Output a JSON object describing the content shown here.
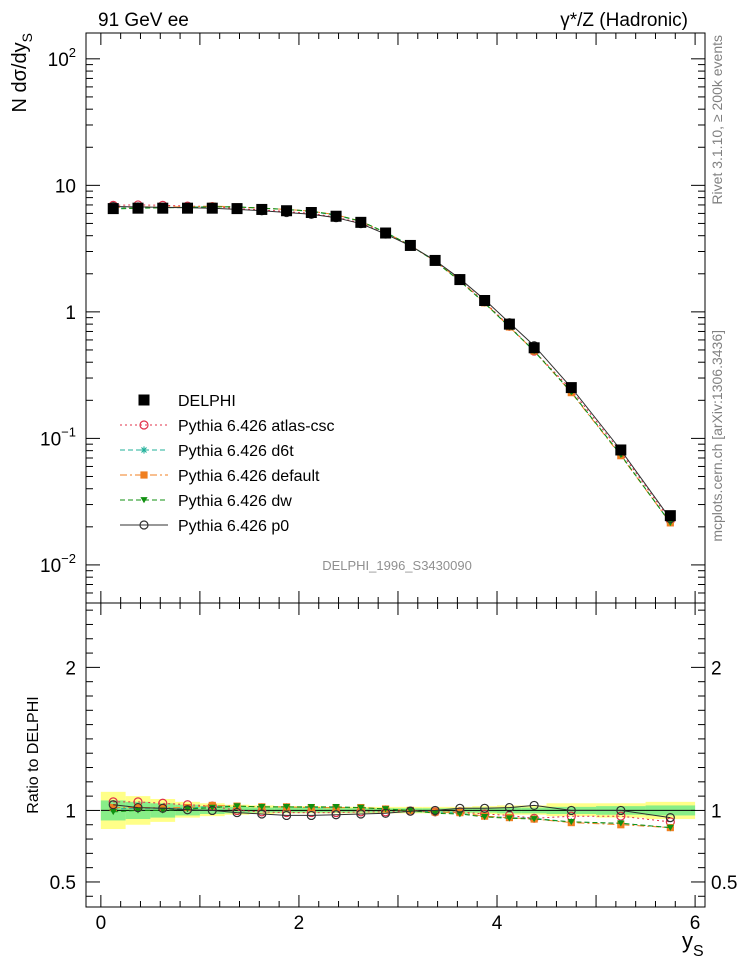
{
  "header": {
    "left_title": "91 GeV ee",
    "right_title": "γ*/Z (Hadronic)"
  },
  "side_labels": {
    "version": "Rivet 3.1.10, ≥ 200k events",
    "source": "mcplots.cern.ch [arXiv:1306.3436]"
  },
  "watermark": "DELPHI_1996_S3430090",
  "colors": {
    "delphi": "#000000",
    "atlas_csc": "#e0304a",
    "d6t": "#20b09a",
    "default": "#f07f20",
    "dw": "#109010",
    "p0": "#303030",
    "band_yellow": "#ffff88",
    "band_green": "#88ee88"
  },
  "chart_data": [
    {
      "type": "scatter",
      "title": "",
      "xlabel": "",
      "ylabel": "N dσ/dy_S",
      "ylog": true,
      "xlim": [
        -0.15,
        6.1
      ],
      "ylim": [
        0.005,
        160
      ],
      "y_ticks": [
        {
          "v": 0.01,
          "base": "10",
          "exp": "−2"
        },
        {
          "v": 0.1,
          "base": "10",
          "exp": "−1"
        },
        {
          "v": 1,
          "base": "1",
          "exp": ""
        },
        {
          "v": 10,
          "base": "10",
          "exp": ""
        },
        {
          "v": 100,
          "base": "10",
          "exp": "2"
        }
      ],
      "x": [
        0.125,
        0.375,
        0.625,
        0.875,
        1.125,
        1.375,
        1.625,
        1.875,
        2.125,
        2.375,
        2.625,
        2.875,
        3.125,
        3.375,
        3.625,
        3.875,
        4.125,
        4.375,
        4.75,
        5.25,
        5.75
      ],
      "legend_position": "lower-left",
      "series": [
        {
          "name": "DELPHI",
          "key": "delphi",
          "marker": "filled-square",
          "line": "none",
          "values": [
            6.55,
            6.6,
            6.6,
            6.6,
            6.6,
            6.55,
            6.45,
            6.3,
            6.1,
            5.7,
            5.1,
            4.2,
            3.35,
            2.55,
            1.8,
            1.23,
            0.8,
            0.52,
            0.252,
            0.081,
            0.0245
          ]
        },
        {
          "name": "Pythia 6.426 atlas-csc",
          "key": "atlas_csc",
          "marker": "open-circle",
          "line": "dotted",
          "values": [
            6.95,
            7.0,
            6.95,
            6.85,
            6.8,
            6.55,
            6.4,
            6.2,
            6.0,
            5.6,
            5.05,
            4.15,
            3.33,
            2.53,
            1.78,
            1.2,
            0.77,
            0.49,
            0.242,
            0.078,
            0.0225
          ]
        },
        {
          "name": "Pythia 6.426 d6t",
          "key": "d6t",
          "marker": "asterisk",
          "line": "dashed",
          "values": [
            6.6,
            6.7,
            6.7,
            6.7,
            6.8,
            6.75,
            6.6,
            6.45,
            6.2,
            5.8,
            5.2,
            4.25,
            3.35,
            2.52,
            1.76,
            1.18,
            0.76,
            0.49,
            0.232,
            0.074,
            0.0215
          ]
        },
        {
          "name": "Pythia 6.426 default",
          "key": "default",
          "marker": "filled-square",
          "line": "dash-dot",
          "values": [
            6.7,
            6.75,
            6.75,
            6.75,
            6.85,
            6.75,
            6.6,
            6.45,
            6.25,
            5.85,
            5.2,
            4.25,
            3.35,
            2.52,
            1.77,
            1.18,
            0.76,
            0.49,
            0.23,
            0.073,
            0.0215
          ]
        },
        {
          "name": "Pythia 6.426 dw",
          "key": "dw",
          "marker": "filled-triangle-down",
          "line": "dashed",
          "values": [
            6.5,
            6.6,
            6.65,
            6.7,
            6.75,
            6.75,
            6.6,
            6.45,
            6.25,
            5.85,
            5.2,
            4.25,
            3.35,
            2.5,
            1.75,
            1.17,
            0.76,
            0.49,
            0.232,
            0.074,
            0.0215
          ]
        },
        {
          "name": "Pythia 6.426 p0",
          "key": "p0",
          "marker": "open-circle",
          "line": "solid",
          "values": [
            6.8,
            6.75,
            6.7,
            6.65,
            6.6,
            6.45,
            6.3,
            6.1,
            5.9,
            5.55,
            4.98,
            4.12,
            3.33,
            2.55,
            1.83,
            1.25,
            0.82,
            0.54,
            0.252,
            0.081,
            0.0232
          ]
        }
      ]
    },
    {
      "type": "scatter",
      "title": "",
      "xlabel": "y_S",
      "ylabel": "Ratio to DELPHI",
      "xlim": [
        -0.15,
        6.1
      ],
      "ylim": [
        0.325,
        2.45
      ],
      "y_ticks": [
        0.5,
        1,
        2
      ],
      "x_ticks": [
        0,
        2,
        4,
        6
      ],
      "bands": {
        "x_edges": [
          0.0,
          0.25,
          0.5,
          0.75,
          1.0,
          1.25,
          1.5,
          1.75,
          2.0,
          2.25,
          2.5,
          2.75,
          3.0,
          3.25,
          3.5,
          3.75,
          4.0,
          4.25,
          4.5,
          5.0,
          5.5,
          6.0
        ],
        "yellow": [
          [
            0.87,
            1.13
          ],
          [
            0.9,
            1.1
          ],
          [
            0.92,
            1.08
          ],
          [
            0.95,
            1.06
          ],
          [
            0.96,
            1.05
          ],
          [
            0.97,
            1.04
          ],
          [
            0.975,
            1.035
          ],
          [
            0.98,
            1.03
          ],
          [
            0.98,
            1.03
          ],
          [
            0.98,
            1.025
          ],
          [
            0.98,
            1.025
          ],
          [
            0.98,
            1.025
          ],
          [
            0.98,
            1.025
          ],
          [
            0.98,
            1.025
          ],
          [
            0.98,
            1.025
          ],
          [
            0.975,
            1.03
          ],
          [
            0.97,
            1.035
          ],
          [
            0.97,
            1.035
          ],
          [
            0.96,
            1.05
          ],
          [
            0.95,
            1.05
          ],
          [
            0.94,
            1.06
          ]
        ],
        "green": [
          [
            0.93,
            1.07
          ],
          [
            0.94,
            1.06
          ],
          [
            0.95,
            1.05
          ],
          [
            0.965,
            1.04
          ],
          [
            0.975,
            1.03
          ],
          [
            0.98,
            1.025
          ],
          [
            0.985,
            1.02
          ],
          [
            0.985,
            1.02
          ],
          [
            0.985,
            1.02
          ],
          [
            0.985,
            1.015
          ],
          [
            0.985,
            1.015
          ],
          [
            0.985,
            1.015
          ],
          [
            0.985,
            1.015
          ],
          [
            0.985,
            1.015
          ],
          [
            0.985,
            1.015
          ],
          [
            0.985,
            1.02
          ],
          [
            0.98,
            1.02
          ],
          [
            0.98,
            1.02
          ],
          [
            0.975,
            1.025
          ],
          [
            0.97,
            1.03
          ],
          [
            0.965,
            1.035
          ]
        ]
      },
      "series": [
        {
          "name": "Pythia 6.426 atlas-csc",
          "key": "atlas_csc",
          "marker": "open-circle",
          "line": "dotted",
          "values": [
            1.06,
            1.06,
            1.05,
            1.04,
            1.03,
            1.0,
            0.99,
            0.985,
            0.985,
            0.985,
            0.99,
            0.99,
            0.995,
            0.99,
            0.99,
            0.975,
            0.965,
            0.945,
            0.96,
            0.96,
            0.92
          ]
        },
        {
          "name": "Pythia 6.426 d6t",
          "key": "d6t",
          "marker": "asterisk",
          "line": "dashed",
          "values": [
            1.01,
            1.015,
            1.015,
            1.015,
            1.03,
            1.03,
            1.025,
            1.025,
            1.02,
            1.02,
            1.02,
            1.01,
            1.0,
            0.99,
            0.98,
            0.96,
            0.95,
            0.945,
            0.92,
            0.91,
            0.88
          ]
        },
        {
          "name": "Pythia 6.426 default",
          "key": "default",
          "marker": "filled-square",
          "line": "dash-dot",
          "values": [
            1.02,
            1.02,
            1.02,
            1.02,
            1.035,
            1.03,
            1.025,
            1.025,
            1.02,
            1.02,
            1.02,
            1.01,
            1.0,
            0.99,
            0.985,
            0.96,
            0.95,
            0.94,
            0.915,
            0.9,
            0.88
          ]
        },
        {
          "name": "Pythia 6.426 dw",
          "key": "dw",
          "marker": "filled-triangle-down",
          "line": "dashed",
          "values": [
            0.99,
            1.0,
            1.0,
            1.01,
            1.02,
            1.03,
            1.025,
            1.025,
            1.025,
            1.025,
            1.02,
            1.01,
            1.0,
            0.98,
            0.975,
            0.955,
            0.945,
            0.94,
            0.92,
            0.91,
            0.88
          ]
        },
        {
          "name": "Pythia 6.426 p0",
          "key": "p0",
          "marker": "open-circle",
          "line": "solid",
          "values": [
            1.04,
            1.02,
            1.015,
            1.005,
            1.0,
            0.985,
            0.975,
            0.965,
            0.965,
            0.97,
            0.975,
            0.98,
            0.995,
            1.0,
            1.015,
            1.015,
            1.02,
            1.035,
            1.0,
            1.0,
            0.95
          ]
        }
      ]
    }
  ]
}
